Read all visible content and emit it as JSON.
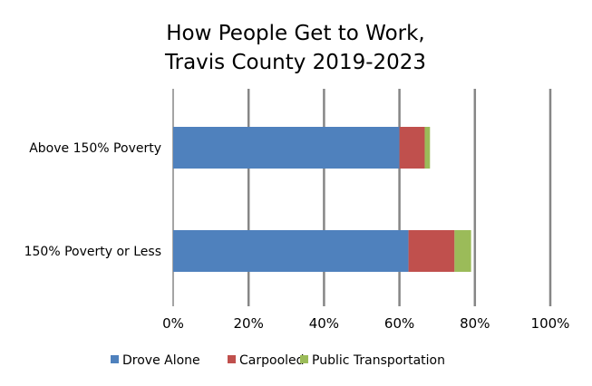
{
  "chart_data": {
    "type": "bar",
    "orientation": "horizontal",
    "stacked": true,
    "title": [
      "How People Get to Work,",
      "Travis County 2019-2023"
    ],
    "categories": [
      "Above 150% Poverty",
      "150% Poverty or Less"
    ],
    "series": [
      {
        "name": "Drove Alone",
        "color": "#4F81BD",
        "values": [
          60.0,
          62.4
        ]
      },
      {
        "name": "Carpooled",
        "color": "#C0504D",
        "values": [
          6.7,
          12.2
        ]
      },
      {
        "name": "Public Transportation",
        "color": "#9BBB59",
        "values": [
          1.4,
          4.4
        ]
      }
    ],
    "xlim": [
      0,
      100
    ],
    "xticks": [
      "0%",
      "20%",
      "40%",
      "60%",
      "80%",
      "100%"
    ],
    "grid": true,
    "legend": "bottom",
    "xlabel": "",
    "ylabel": ""
  }
}
